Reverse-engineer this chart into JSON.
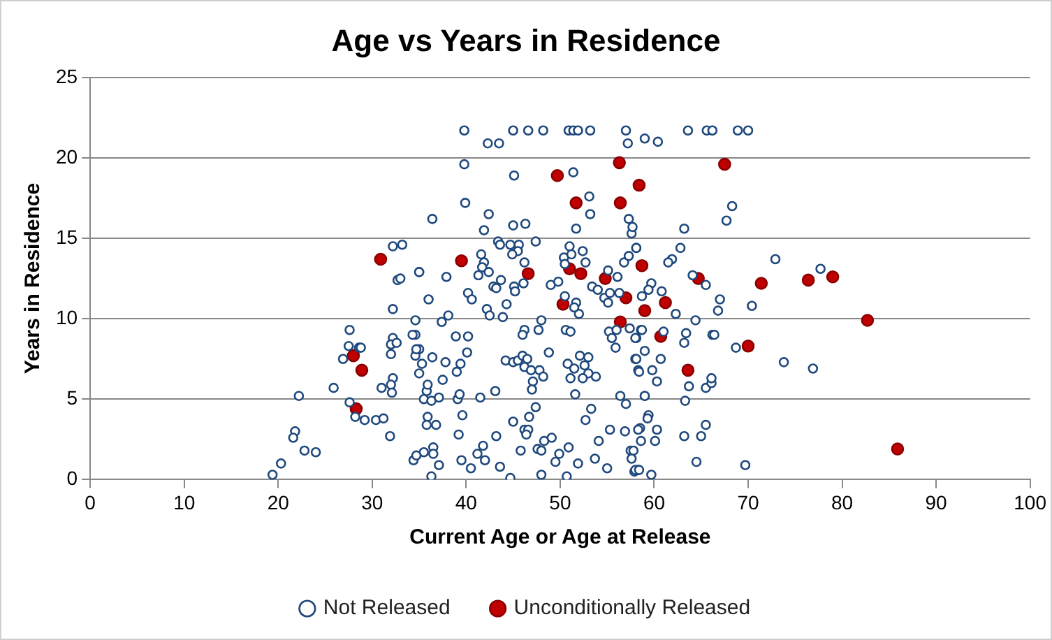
{
  "chart_data": {
    "type": "scatter",
    "title": "Age vs Years in Residence",
    "xlabel": "Current Age or Age at Release",
    "ylabel": "Years in Residence",
    "xlim": [
      0,
      100
    ],
    "xticks": [
      0,
      10,
      20,
      30,
      40,
      50,
      60,
      70,
      80,
      90,
      100
    ],
    "ylim": [
      0,
      25
    ],
    "yticks": [
      0,
      5,
      10,
      15,
      20,
      25
    ],
    "grid": "y",
    "legend": "bottom",
    "marker": "circle",
    "series": [
      {
        "name": "Not Released",
        "color": "#1f497d",
        "x": [
          32.2,
          33.2,
          35.0,
          32.7,
          33.0,
          32.2,
          27.6,
          27.5,
          28.6,
          28.8,
          26.9,
          32.2,
          32.0,
          32.6,
          32.0,
          34.6,
          35.0,
          34.6,
          35.3,
          32.2,
          31.0,
          32.0,
          32.1,
          35.8,
          25.9,
          22.2,
          27.6,
          28.2,
          29.2,
          30.4,
          31.2,
          31.9,
          21.8,
          21.6,
          22.8,
          24.0,
          20.3,
          19.4,
          34.4,
          35.5,
          35.9,
          39.8,
          45.0,
          46.6,
          48.2,
          50.9,
          51.4,
          51.9,
          53.2,
          57.0,
          42.3,
          43.5,
          57.2,
          39.8,
          45.1,
          51.4,
          53.1,
          53.2,
          39.9,
          36.4,
          42.4,
          41.9,
          45.0,
          46.3,
          47.4,
          51.7,
          43.4,
          43.6,
          44.7,
          45.6,
          45.5,
          44.9,
          46.2,
          41.6,
          41.9,
          41.7,
          42.4,
          41.3,
          35.0,
          37.9,
          36.0,
          42.9,
          43.7,
          43.2,
          45.1,
          40.2,
          40.6,
          42.2,
          42.5,
          43.9,
          44.3,
          45.2,
          46.1,
          49.0,
          49.8,
          50.4,
          51.0,
          51.2,
          50.5,
          52.4,
          52.7,
          55.1,
          56.8,
          57.3,
          58.1,
          57.6,
          57.7,
          57.3,
          50.5,
          51.7,
          52.0,
          51.5,
          53.4,
          54.0,
          54.7,
          55.1,
          55.3,
          56.3,
          56.1,
          55.2,
          56.0,
          57.4,
          58.6,
          58.1,
          55.5,
          55.9,
          37.4,
          38.1,
          34.6,
          34.3,
          38.9,
          40.2,
          46.2,
          46.0,
          47.7,
          48.0,
          50.6,
          51.1,
          34.7,
          36.4,
          37.8,
          35.0,
          39.4,
          40.1,
          44.2,
          45.0,
          45.5,
          46.0,
          46.5,
          46.2,
          46.9,
          47.8,
          48.2,
          47.1,
          47.0,
          48.8,
          50.8,
          51.5,
          52.1,
          53.0,
          52.6,
          53.8,
          53.0,
          52.4,
          51.1,
          58.0,
          58.3,
          56.4,
          57.0,
          59.0,
          35.9,
          37.5,
          39.0,
          35.5,
          36.3,
          37.1,
          39.1,
          39.3,
          41.5,
          43.1,
          39.6,
          35.8,
          36.8,
          39.2,
          45.0,
          46.2,
          46.7,
          47.4,
          46.6,
          46.4,
          43.2,
          51.6,
          53.3,
          52.7,
          54.1,
          55.3,
          56.9,
          58.5,
          36.5,
          36.5,
          37.1,
          36.3,
          34.7,
          39.5,
          40.5,
          41.2,
          42.0,
          41.8,
          43.6,
          45.8,
          47.6,
          48.3,
          49.1,
          48.0,
          49.5,
          49.9,
          50.9,
          44.7,
          48.0,
          50.7,
          51.9,
          53.7,
          55.0,
          57.9,
          58.3,
          57.5,
          63.6,
          65.6,
          66.2,
          68.9,
          70.0,
          59.0,
          60.4,
          68.3,
          67.7,
          63.2,
          58.1,
          62.8,
          72.9,
          77.7,
          61.9,
          61.5,
          64.1,
          65.5,
          59.7,
          59.4,
          60.8,
          58.7,
          67.0,
          66.8,
          70.4,
          62.3,
          64.4,
          58.7,
          58.0,
          61.0,
          63.4,
          63.2,
          66.2,
          66.4,
          59.0,
          60.7,
          58.1,
          58.4,
          59.8,
          60.3,
          68.7,
          73.8,
          76.9,
          63.7,
          65.5,
          66.1,
          66.1,
          63.3,
          59.0,
          59.4,
          59.3,
          58.3,
          60.3,
          58.6,
          60.1,
          63.2,
          65.0,
          65.5,
          57.8,
          57.6,
          58.0,
          58.4,
          59.7,
          64.5,
          69.7
        ],
        "values": [
          14.5,
          14.6,
          12.9,
          12.4,
          12.5,
          10.6,
          9.3,
          8.3,
          8.2,
          8.2,
          7.5,
          8.8,
          8.4,
          8.5,
          7.8,
          9.0,
          8.1,
          7.7,
          7.2,
          6.3,
          5.7,
          5.9,
          5.4,
          5.5,
          5.7,
          5.2,
          4.8,
          3.9,
          3.7,
          3.7,
          3.8,
          2.7,
          3.0,
          2.6,
          1.8,
          1.7,
          1.0,
          0.3,
          1.2,
          1.7,
          3.9,
          21.7,
          21.7,
          21.7,
          21.7,
          21.7,
          21.7,
          21.7,
          21.7,
          21.7,
          20.9,
          20.9,
          20.9,
          19.6,
          18.9,
          19.1,
          17.6,
          16.5,
          17.2,
          16.2,
          16.5,
          15.5,
          15.8,
          15.9,
          14.8,
          15.6,
          14.8,
          14.6,
          14.6,
          14.6,
          14.2,
          14.0,
          13.5,
          14.0,
          13.5,
          13.2,
          12.9,
          12.7,
          12.9,
          12.6,
          11.2,
          12.0,
          12.4,
          11.9,
          12.0,
          11.6,
          11.2,
          10.6,
          10.2,
          10.1,
          10.9,
          11.7,
          12.2,
          12.1,
          12.3,
          13.8,
          14.5,
          14.0,
          13.4,
          14.2,
          13.5,
          13.0,
          13.5,
          13.9,
          14.4,
          15.3,
          15.7,
          16.2,
          11.4,
          11.0,
          10.3,
          10.7,
          12.0,
          11.8,
          11.3,
          11.0,
          11.6,
          11.6,
          12.6,
          9.2,
          9.3,
          9.4,
          9.3,
          8.8,
          8.8,
          8.2,
          9.8,
          10.2,
          9.9,
          9.0,
          8.9,
          8.9,
          9.3,
          9.0,
          9.3,
          9.9,
          9.3,
          9.2,
          8.1,
          7.6,
          7.3,
          6.6,
          7.2,
          7.9,
          7.4,
          7.3,
          7.4,
          7.7,
          7.5,
          7.0,
          6.8,
          6.8,
          6.4,
          6.1,
          5.6,
          7.9,
          7.2,
          6.9,
          7.7,
          7.6,
          7.1,
          6.4,
          6.6,
          6.3,
          6.3,
          7.5,
          6.8,
          5.2,
          4.7,
          5.2,
          5.9,
          6.2,
          6.7,
          5.0,
          4.9,
          5.1,
          5.0,
          5.3,
          5.1,
          5.5,
          4.0,
          3.4,
          3.4,
          2.8,
          3.6,
          3.1,
          3.9,
          4.5,
          3.1,
          2.8,
          2.7,
          5.3,
          4.4,
          3.7,
          2.4,
          3.1,
          3.0,
          3.2,
          2.0,
          1.6,
          0.9,
          0.2,
          1.5,
          1.2,
          0.7,
          1.6,
          1.2,
          2.1,
          0.8,
          1.8,
          1.9,
          2.4,
          2.6,
          1.8,
          1.1,
          1.6,
          2.0,
          0.1,
          0.3,
          0.2,
          1.0,
          1.3,
          0.7,
          0.5,
          0.6,
          1.8,
          21.7,
          21.7,
          21.7,
          21.7,
          21.7,
          21.2,
          21.0,
          17.0,
          16.1,
          15.6,
          14.4,
          14.4,
          13.7,
          13.1,
          13.7,
          13.5,
          12.7,
          12.1,
          12.2,
          11.8,
          11.7,
          11.4,
          11.2,
          10.5,
          10.8,
          10.3,
          9.9,
          9.3,
          8.8,
          9.2,
          9.1,
          8.5,
          9.0,
          9.0,
          8.0,
          7.5,
          7.5,
          6.7,
          6.8,
          6.1,
          8.2,
          7.3,
          6.9,
          5.8,
          5.7,
          6.0,
          6.3,
          4.9,
          5.2,
          4.0,
          3.8,
          3.1,
          3.1,
          2.4,
          2.4,
          2.7,
          2.7,
          3.4,
          1.8,
          1.3,
          0.6,
          0.6,
          0.3,
          1.1,
          0.9
        ]
      },
      {
        "name": "Unconditionally Released",
        "color": "#c00000",
        "x": [
          30.9,
          28.0,
          28.9,
          28.3,
          56.3,
          49.7,
          58.4,
          51.7,
          56.4,
          39.5,
          46.6,
          51.0,
          52.2,
          54.8,
          57.0,
          50.3,
          56.4,
          67.5,
          58.7,
          64.7,
          71.4,
          76.4,
          79.0,
          82.7,
          61.2,
          59.0,
          60.7,
          70.0,
          63.6,
          85.9
        ],
        "values": [
          13.7,
          7.7,
          6.8,
          4.4,
          19.7,
          18.9,
          18.3,
          17.2,
          17.2,
          13.6,
          12.8,
          13.1,
          12.8,
          12.5,
          11.3,
          10.9,
          9.8,
          19.6,
          13.3,
          12.5,
          12.2,
          12.4,
          12.6,
          9.9,
          11.0,
          10.5,
          8.9,
          8.3,
          6.8,
          1.9
        ]
      }
    ]
  }
}
